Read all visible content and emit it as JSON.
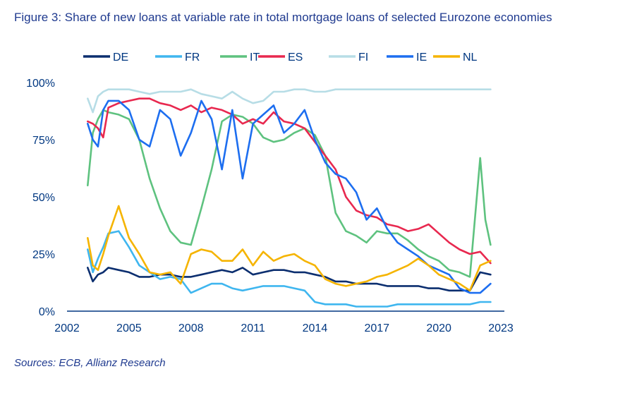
{
  "title": "Figure 3: Share of new loans at variable rate in total mortgage loans of selected Eurozone economies",
  "source": "Sources: ECB, Allianz Research",
  "chart_data": {
    "type": "line",
    "title": "Figure 3: Share of new loans at variable rate in total mortgage loans of selected Eurozone economies",
    "xlabel": "",
    "ylabel": "",
    "xlim": [
      2002,
      2023
    ],
    "ylim": [
      0,
      100
    ],
    "x_ticks": [
      "2002",
      "2005",
      "2008",
      "2011",
      "2014",
      "2017",
      "2020",
      "2023"
    ],
    "y_ticks": [
      "0%",
      "25%",
      "50%",
      "75%",
      "100%"
    ],
    "legend_position": "top",
    "series": [
      {
        "name": "DE",
        "color": "#0b2e6f",
        "x": [
          2003,
          2003.25,
          2003.5,
          2003.75,
          2004,
          2004.5,
          2005,
          2005.5,
          2006,
          2006.5,
          2007,
          2007.5,
          2008,
          2008.5,
          2009,
          2009.5,
          2010,
          2010.5,
          2011,
          2011.5,
          2012,
          2012.5,
          2013,
          2013.5,
          2014,
          2014.5,
          2015,
          2015.5,
          2016,
          2016.5,
          2017,
          2017.5,
          2018,
          2018.5,
          2019,
          2019.5,
          2020,
          2020.5,
          2021,
          2021.5,
          2022,
          2022.5
        ],
        "values": [
          19,
          13,
          16,
          17,
          19,
          18,
          17,
          15,
          15,
          16,
          16,
          15,
          15,
          16,
          17,
          18,
          17,
          19,
          16,
          17,
          18,
          18,
          17,
          17,
          16,
          15,
          13,
          13,
          12,
          12,
          12,
          11,
          11,
          11,
          11,
          10,
          10,
          9,
          9,
          9,
          17,
          16
        ]
      },
      {
        "name": "FR",
        "color": "#3fb6ef",
        "x": [
          2003,
          2003.25,
          2003.5,
          2003.75,
          2004,
          2004.5,
          2005,
          2005.5,
          2006,
          2006.5,
          2007,
          2007.5,
          2008,
          2008.5,
          2009,
          2009.5,
          2010,
          2010.5,
          2011,
          2011.5,
          2012,
          2012.5,
          2013,
          2013.5,
          2014,
          2014.5,
          2015,
          2015.5,
          2016,
          2016.5,
          2017,
          2017.5,
          2018,
          2018.5,
          2019,
          2019.5,
          2020,
          2020.5,
          2021,
          2021.5,
          2022,
          2022.5
        ],
        "values": [
          27,
          17,
          23,
          28,
          34,
          35,
          28,
          20,
          17,
          14,
          15,
          14,
          8,
          10,
          12,
          12,
          10,
          9,
          10,
          11,
          11,
          11,
          10,
          9,
          4,
          3,
          3,
          3,
          2,
          2,
          2,
          2,
          3,
          3,
          3,
          3,
          3,
          3,
          3,
          3,
          4,
          4
        ]
      },
      {
        "name": "IT",
        "color": "#5ec27f",
        "x": [
          2003,
          2003.25,
          2003.5,
          2003.75,
          2004,
          2004.5,
          2005,
          2005.5,
          2006,
          2006.5,
          2007,
          2007.5,
          2008,
          2008.5,
          2009,
          2009.5,
          2010,
          2010.5,
          2011,
          2011.5,
          2012,
          2012.5,
          2013,
          2013.5,
          2014,
          2014.5,
          2015,
          2015.5,
          2016,
          2016.5,
          2017,
          2017.5,
          2018,
          2018.5,
          2019,
          2019.5,
          2020,
          2020.5,
          2021,
          2021.5,
          2022,
          2022.25,
          2022.5
        ],
        "values": [
          55,
          78,
          84,
          88,
          87,
          86,
          84,
          75,
          58,
          45,
          35,
          30,
          29,
          45,
          62,
          83,
          86,
          85,
          82,
          76,
          74,
          75,
          78,
          80,
          77,
          68,
          43,
          35,
          33,
          30,
          35,
          34,
          34,
          31,
          27,
          24,
          22,
          18,
          17,
          15,
          67,
          40,
          29
        ]
      },
      {
        "name": "ES",
        "color": "#e8284f",
        "x": [
          2003,
          2003.25,
          2003.5,
          2003.75,
          2004,
          2004.5,
          2005,
          2005.5,
          2006,
          2006.5,
          2007,
          2007.5,
          2008,
          2008.5,
          2009,
          2009.5,
          2010,
          2010.5,
          2011,
          2011.5,
          2012,
          2012.5,
          2013,
          2013.5,
          2014,
          2014.5,
          2015,
          2015.5,
          2016,
          2016.5,
          2017,
          2017.5,
          2018,
          2018.5,
          2019,
          2019.5,
          2020,
          2020.5,
          2021,
          2021.5,
          2022,
          2022.5
        ],
        "values": [
          83,
          82,
          80,
          76,
          89,
          91,
          92,
          93,
          93,
          91,
          90,
          88,
          90,
          87,
          89,
          88,
          86,
          82,
          84,
          82,
          87,
          83,
          82,
          80,
          74,
          68,
          62,
          50,
          44,
          42,
          41,
          38,
          37,
          35,
          36,
          38,
          34,
          30,
          27,
          25,
          26,
          21
        ]
      },
      {
        "name": "FI",
        "color": "#b7dde6",
        "x": [
          2003,
          2003.25,
          2003.5,
          2003.75,
          2004,
          2004.5,
          2005,
          2005.5,
          2006,
          2006.5,
          2007,
          2007.5,
          2008,
          2008.5,
          2009,
          2009.5,
          2010,
          2010.5,
          2011,
          2011.5,
          2012,
          2012.5,
          2013,
          2013.5,
          2014,
          2014.5,
          2015,
          2015.5,
          2016,
          2016.5,
          2017,
          2017.5,
          2018,
          2018.5,
          2019,
          2019.5,
          2020,
          2020.5,
          2021,
          2021.5,
          2022,
          2022.5
        ],
        "values": [
          93,
          87,
          94,
          96,
          97,
          97,
          97,
          96,
          95,
          96,
          96,
          96,
          97,
          95,
          94,
          93,
          96,
          93,
          91,
          92,
          96,
          96,
          97,
          97,
          96,
          96,
          97,
          97,
          97,
          97,
          97,
          97,
          97,
          97,
          97,
          97,
          97,
          97,
          97,
          97,
          97,
          97
        ]
      },
      {
        "name": "IE",
        "color": "#1d6ef0",
        "x": [
          2003,
          2003.25,
          2003.5,
          2003.75,
          2004,
          2004.5,
          2005,
          2005.5,
          2006,
          2006.5,
          2007,
          2007.5,
          2008,
          2008.5,
          2009,
          2009.5,
          2010,
          2010.5,
          2011,
          2011.5,
          2012,
          2012.5,
          2013,
          2013.5,
          2014,
          2014.5,
          2015,
          2015.5,
          2016,
          2016.5,
          2017,
          2017.5,
          2018,
          2018.5,
          2019,
          2019.5,
          2020,
          2020.5,
          2021,
          2021.5,
          2022,
          2022.5
        ],
        "values": [
          82,
          75,
          72,
          88,
          92,
          92,
          88,
          75,
          72,
          88,
          84,
          68,
          78,
          92,
          84,
          62,
          88,
          58,
          82,
          86,
          90,
          78,
          82,
          88,
          75,
          65,
          60,
          58,
          52,
          40,
          45,
          36,
          30,
          27,
          24,
          20,
          18,
          16,
          10,
          8,
          8,
          12
        ]
      },
      {
        "name": "NL",
        "color": "#f5b400",
        "x": [
          2003,
          2003.25,
          2003.5,
          2003.75,
          2004,
          2004.5,
          2005,
          2005.5,
          2006,
          2006.5,
          2007,
          2007.5,
          2008,
          2008.5,
          2009,
          2009.5,
          2010,
          2010.5,
          2011,
          2011.5,
          2012,
          2012.5,
          2013,
          2013.5,
          2014,
          2014.5,
          2015,
          2015.5,
          2016,
          2016.5,
          2017,
          2017.5,
          2018,
          2018.5,
          2019,
          2019.5,
          2020,
          2020.5,
          2021,
          2021.5,
          2022,
          2022.5
        ],
        "values": [
          32,
          20,
          18,
          25,
          33,
          46,
          32,
          25,
          17,
          16,
          17,
          12,
          25,
          27,
          26,
          22,
          22,
          27,
          20,
          26,
          22,
          24,
          25,
          22,
          20,
          14,
          12,
          11,
          12,
          13,
          15,
          16,
          18,
          20,
          23,
          20,
          16,
          14,
          12,
          9,
          20,
          22
        ]
      }
    ]
  }
}
